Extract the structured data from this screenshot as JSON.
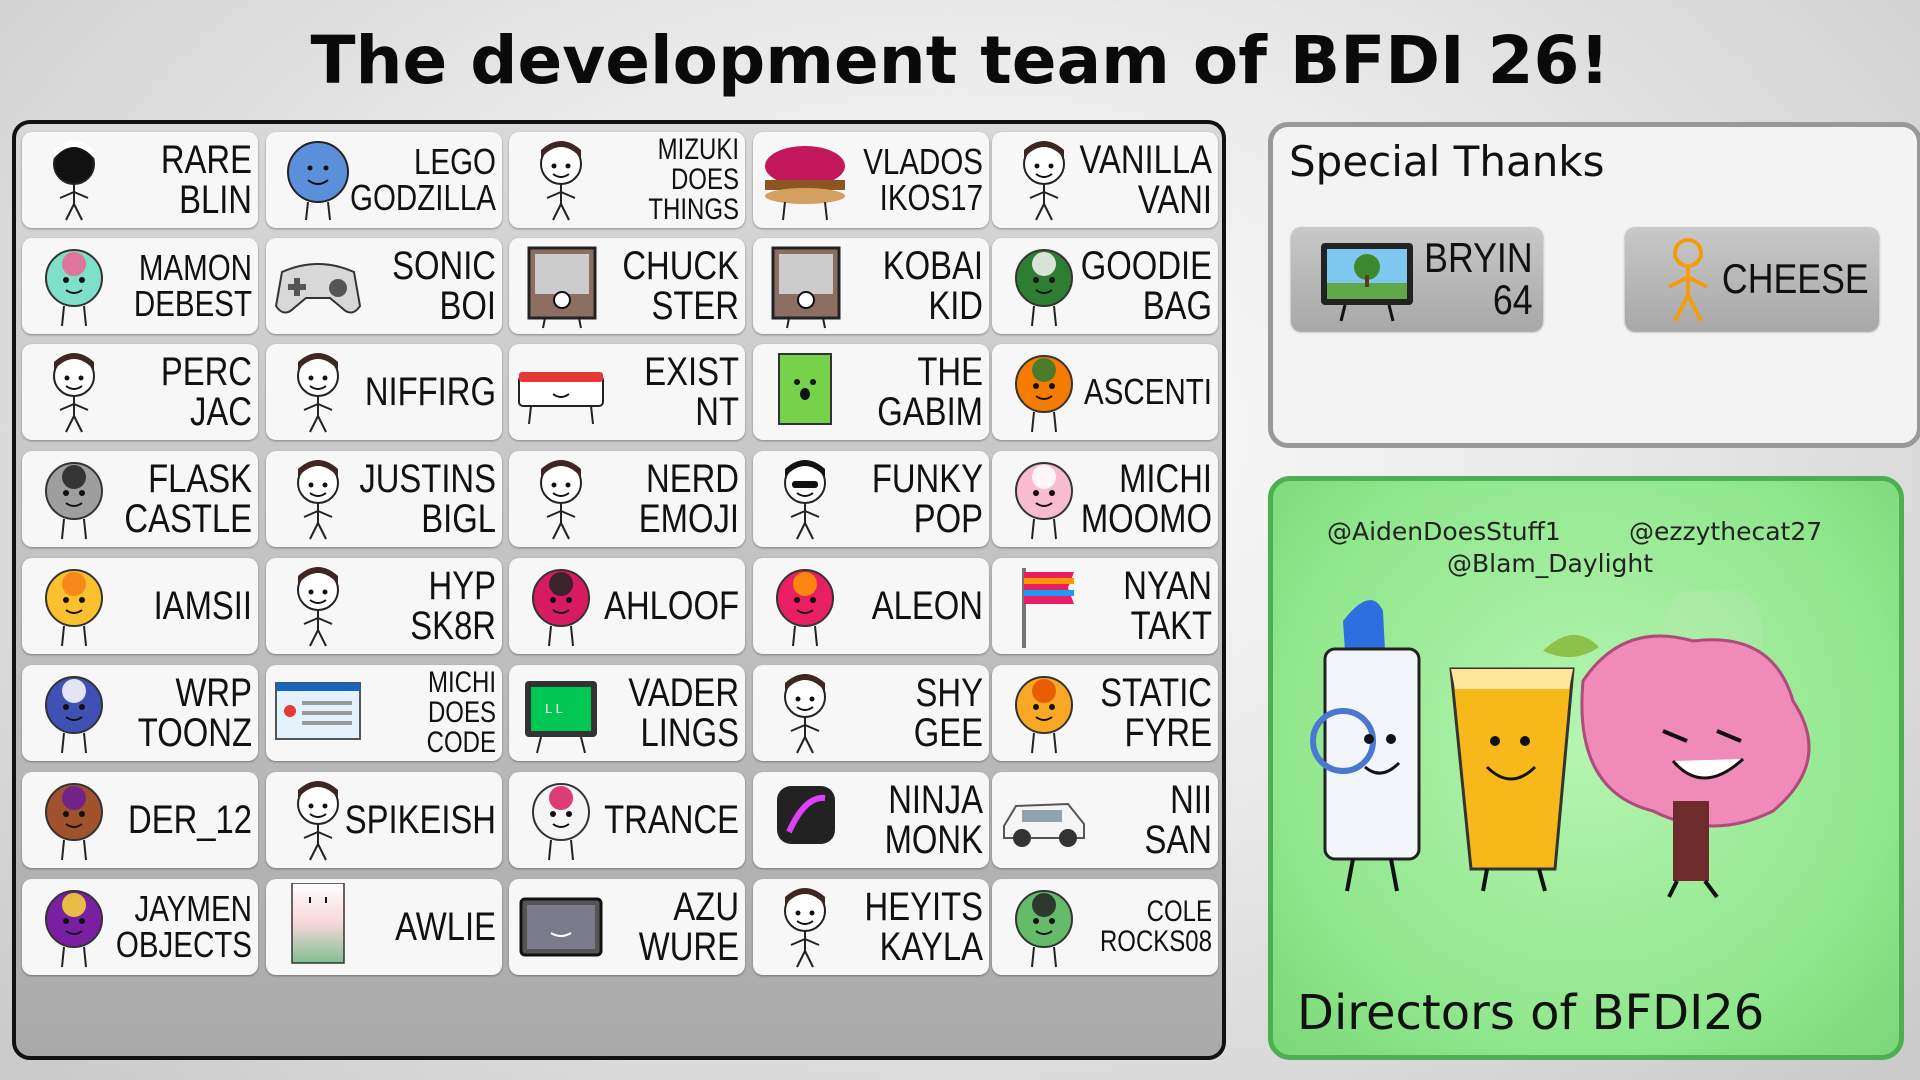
{
  "title": "The development team of BFDI 26!",
  "team": [
    {
      "name": "RARE\nBLIN",
      "size": "big",
      "avatar": "dark-person-icon"
    },
    {
      "name": "LEGO\nGODZILLA",
      "size": "mid",
      "avatar": "blue-circle-icon"
    },
    {
      "name": "MIZUKI\nDOES\nTHINGS",
      "size": "sm",
      "avatar": "person-icon"
    },
    {
      "name": "VLADOS\nIKOS17",
      "size": "mid",
      "avatar": "burger-icon"
    },
    {
      "name": "VANILLA\nVANI",
      "size": "big",
      "avatar": "person-icon"
    },
    {
      "name": "MAMON\nDEBEST",
      "size": "mid",
      "avatar": "fairy-icon"
    },
    {
      "name": "SONIC\nBOI",
      "size": "big",
      "avatar": "gamepad-icon"
    },
    {
      "name": "CHUCK\nSTER",
      "size": "big",
      "avatar": "photo-icon"
    },
    {
      "name": "KOBAI\nKID",
      "size": "big",
      "avatar": "photo-icon"
    },
    {
      "name": "GOODIE\nBAG",
      "size": "big",
      "avatar": "bag-icon"
    },
    {
      "name": "PERC\nJAC",
      "size": "big",
      "avatar": "person-icon"
    },
    {
      "name": "NIFFIRG",
      "size": "one",
      "avatar": "person-icon"
    },
    {
      "name": "EXIST\nNT",
      "size": "big",
      "avatar": "box-icon"
    },
    {
      "name": "THE\nGABIM",
      "size": "big",
      "avatar": "notepad-icon"
    },
    {
      "name": "ASCENTI",
      "size": "mid",
      "avatar": "pepper-icon"
    },
    {
      "name": "FLASK\nCASTLE",
      "size": "big",
      "avatar": "flask-icon"
    },
    {
      "name": "JUSTINS\nBIGL",
      "size": "big",
      "avatar": "person-icon"
    },
    {
      "name": "NERD\nEMOJI",
      "size": "big",
      "avatar": "person-icon"
    },
    {
      "name": "FUNKY\nPOP",
      "size": "big",
      "avatar": "sunglasses-person-icon"
    },
    {
      "name": "MICHI\nMOOMO",
      "size": "big",
      "avatar": "sock-icon"
    },
    {
      "name": "IAMSII",
      "size": "one",
      "avatar": "yellow-shape-icon"
    },
    {
      "name": "HYP\nSK8R",
      "size": "big",
      "avatar": "person-icon"
    },
    {
      "name": "AHLOOF",
      "size": "one",
      "avatar": "witch-icon"
    },
    {
      "name": "ALEON",
      "size": "one",
      "avatar": "beanie-icon"
    },
    {
      "name": "NYAN\nTAKT",
      "size": "big",
      "avatar": "flag-icon"
    },
    {
      "name": "WRP\nTOONZ",
      "size": "big",
      "avatar": "blue-blob-icon"
    },
    {
      "name": "MICHI\nDOES\nCODE",
      "size": "sm",
      "avatar": "error-window-icon"
    },
    {
      "name": "VADER\nLINGS",
      "size": "big",
      "avatar": "monitor-icon"
    },
    {
      "name": "SHY\nGEE",
      "size": "big",
      "avatar": "person-icon"
    },
    {
      "name": "STATIC\nFYRE",
      "size": "big",
      "avatar": "flower-icon"
    },
    {
      "name": "DER_12",
      "size": "one",
      "avatar": "cookie-hat-icon"
    },
    {
      "name": "SPIKEISH",
      "size": "one",
      "avatar": "person-icon"
    },
    {
      "name": "TRANCE",
      "size": "one",
      "avatar": "cloud-headphones-icon"
    },
    {
      "name": "NINJA\nMONK",
      "size": "big",
      "avatar": "app-icon"
    },
    {
      "name": "NII\nSAN",
      "size": "big",
      "avatar": "car-icon"
    },
    {
      "name": "JAYMEN\nOBJECTS",
      "size": "mid",
      "avatar": "top-hat-icon"
    },
    {
      "name": "AWLIE",
      "size": "one",
      "avatar": "gradient-card-icon"
    },
    {
      "name": "AZU\nWURE",
      "size": "big",
      "avatar": "tablet-icon"
    },
    {
      "name": "HEYITS\nKAYLA",
      "size": "big",
      "avatar": "person-icon"
    },
    {
      "name": "COLE\nROCKS08",
      "size": "sm",
      "avatar": "lettuce-icon"
    }
  ],
  "special_thanks": {
    "title": "Special Thanks",
    "people": [
      {
        "name": "BRYIN\n64",
        "avatar": "tv-tree-icon"
      },
      {
        "name": "CHEESE",
        "avatar": "orange-stick-figure-icon"
      }
    ]
  },
  "directors": {
    "handles": [
      "@AidenDoesStuff1",
      "@ezzythecat27",
      "@Blam_Daylight"
    ],
    "label": "Directors of BFDI26"
  }
}
